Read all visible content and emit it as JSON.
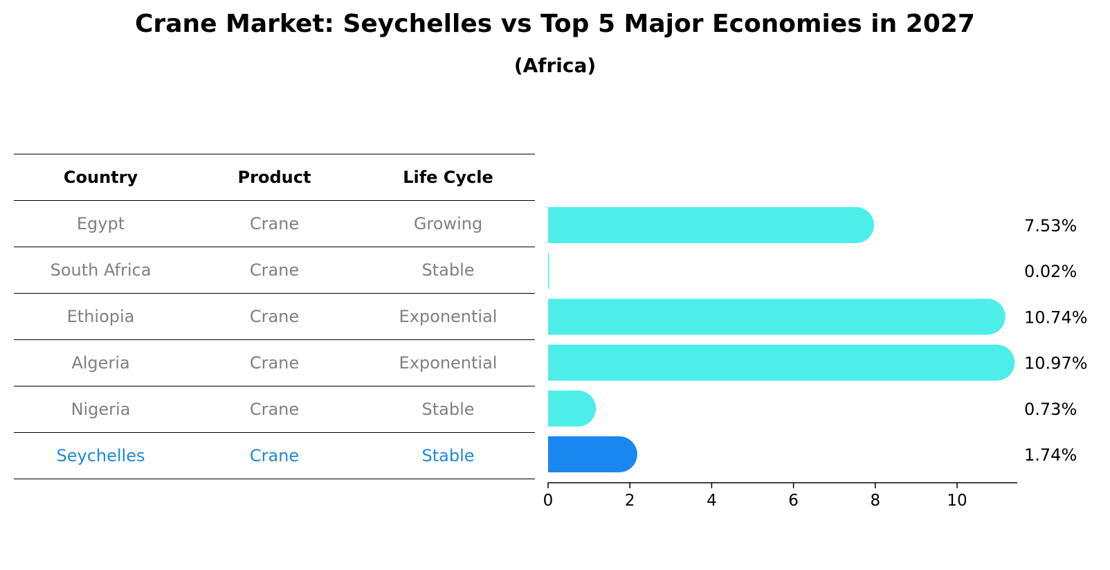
{
  "title": "Crane Market: Seychelles vs Top 5 Major Economies in 2027",
  "subtitle": "(Africa)",
  "table": {
    "headers": [
      "Country",
      "Product",
      "Life Cycle"
    ],
    "rows": [
      {
        "country": "Egypt",
        "product": "Crane",
        "life_cycle": "Growing"
      },
      {
        "country": "South Africa",
        "product": "Crane",
        "life_cycle": "Stable"
      },
      {
        "country": "Ethiopia",
        "product": "Crane",
        "life_cycle": "Exponential"
      },
      {
        "country": "Algeria",
        "product": "Crane",
        "life_cycle": "Exponential"
      },
      {
        "country": "Nigeria",
        "product": "Crane",
        "life_cycle": "Stable"
      },
      {
        "country": "Seychelles",
        "product": "Crane",
        "life_cycle": "Stable"
      }
    ]
  },
  "chart_data": {
    "type": "bar",
    "orientation": "horizontal",
    "categories": [
      "Egypt",
      "South Africa",
      "Ethiopia",
      "Algeria",
      "Nigeria",
      "Seychelles"
    ],
    "values": [
      7.53,
      0.02,
      10.74,
      10.97,
      0.73,
      1.74
    ],
    "value_labels": [
      "7.53%",
      "0.02%",
      "10.74%",
      "10.97%",
      "0.73%",
      "1.74%"
    ],
    "highlight": "Seychelles",
    "xlim": [
      0,
      11.5
    ],
    "xticks": [
      0,
      2,
      4,
      6,
      8,
      10
    ],
    "grid": false,
    "colors": {
      "default": "#4deeea",
      "highlight": "#1a87f0",
      "text_grey": "#808080",
      "text_highlight": "#1f89d6"
    }
  }
}
